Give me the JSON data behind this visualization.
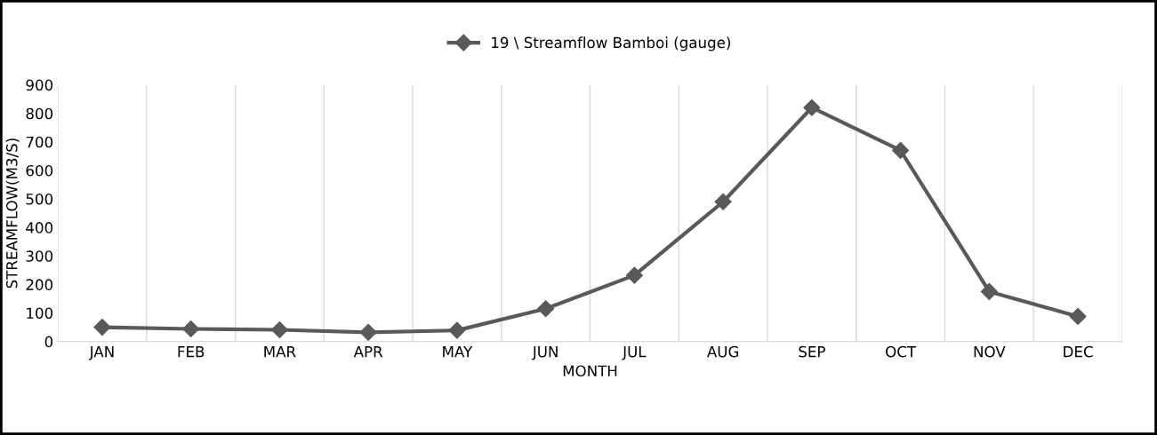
{
  "chart_data": {
    "type": "line",
    "xlabel": "MONTH",
    "ylabel": "STREAMFLOW(M3/S)",
    "categories": [
      "JAN",
      "FEB",
      "MAR",
      "APR",
      "MAY",
      "JUN",
      "JUL",
      "AUG",
      "SEP",
      "OCT",
      "NOV",
      "DEC"
    ],
    "series": [
      {
        "name": "19 \\ Streamflow Bamboi (gauge)",
        "color": "#595959",
        "values": [
          50,
          44,
          41,
          32,
          39,
          115,
          232,
          490,
          820,
          670,
          175,
          88
        ]
      }
    ],
    "ylim": [
      0,
      900
    ],
    "yticks": [
      0,
      100,
      200,
      300,
      400,
      500,
      600,
      700,
      800,
      900
    ],
    "grid": "x",
    "legend": "top",
    "marker": "diamond",
    "line_style": "solid"
  }
}
